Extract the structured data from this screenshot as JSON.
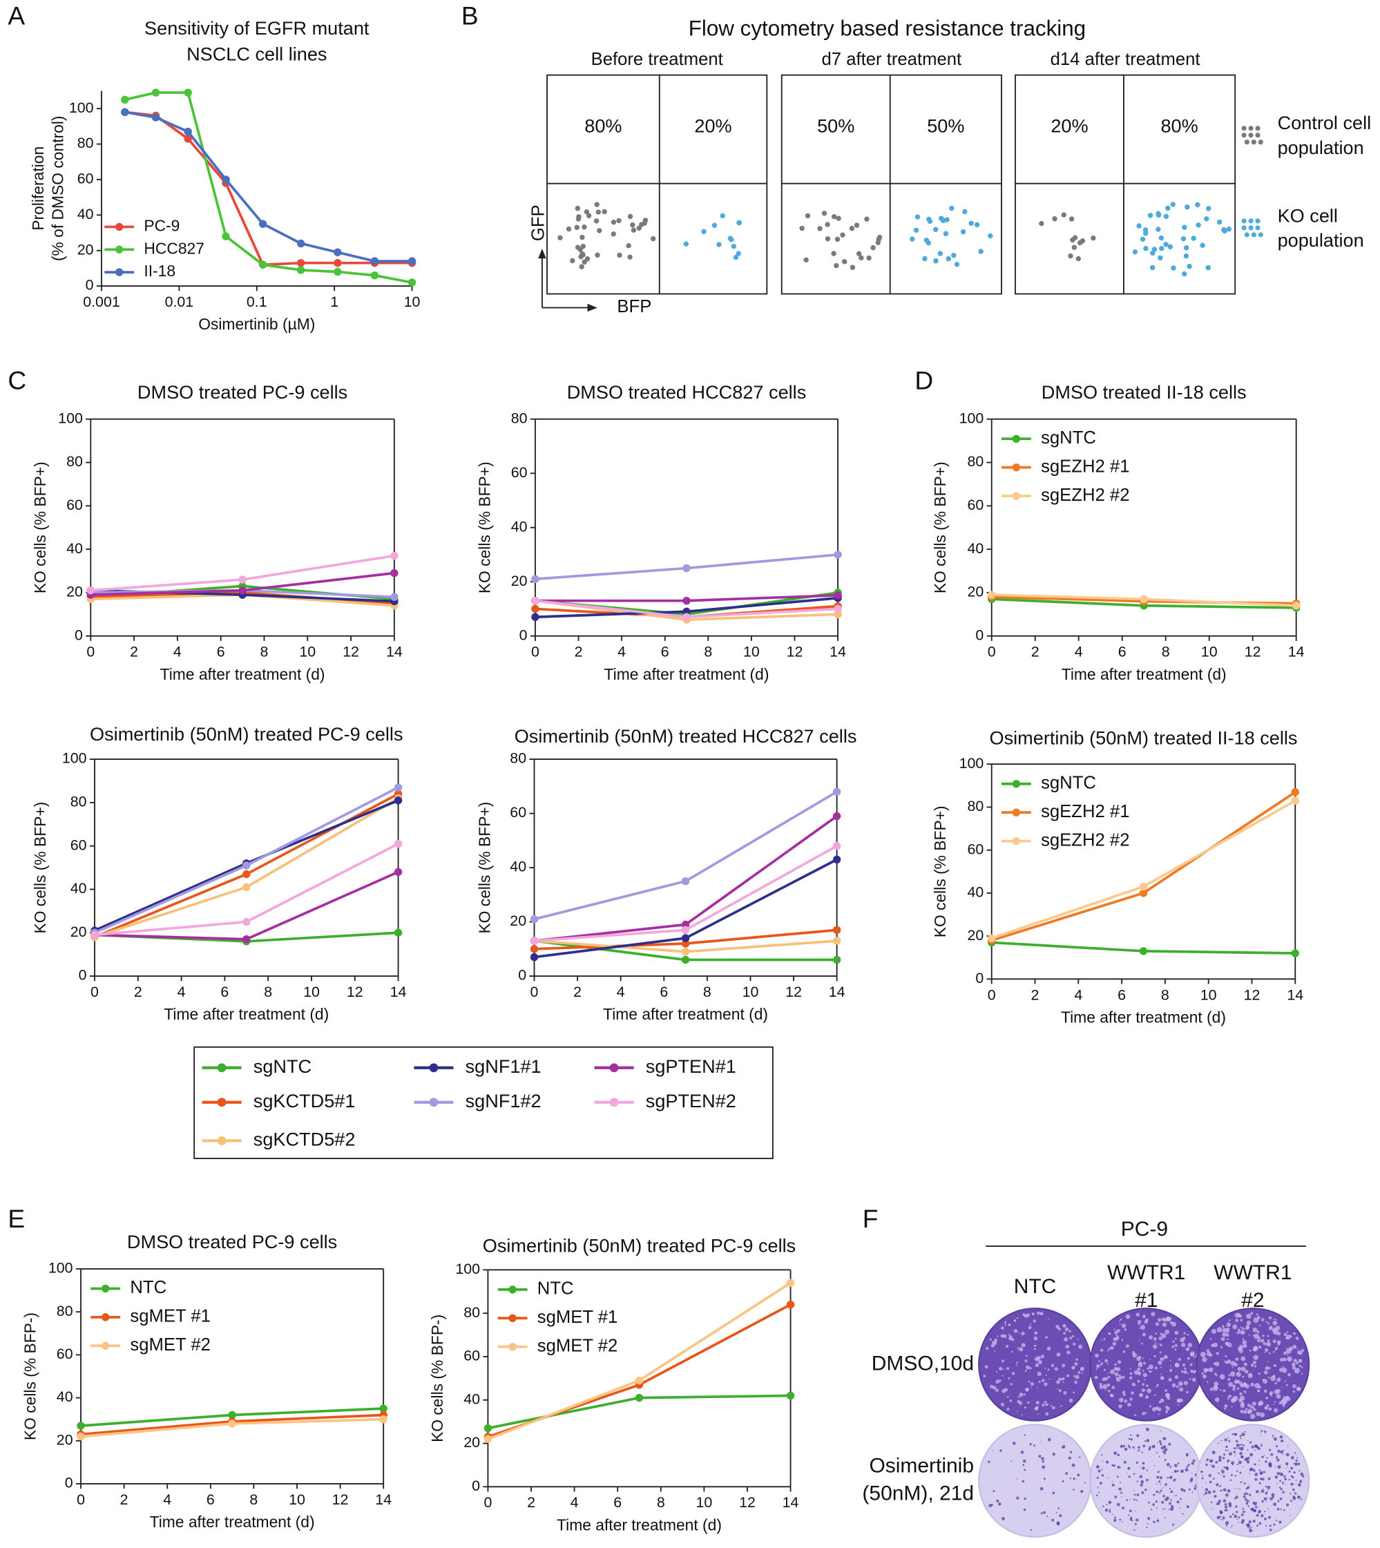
{
  "panel_labels": [
    "A",
    "B",
    "C",
    "D",
    "E",
    "F"
  ],
  "chart_data": [
    {
      "type": "line",
      "title": [
        "Sensitivity of EGFR mutant",
        "NSCLC cell lines"
      ],
      "x_label": "Osimertinib (µM)",
      "y_label": [
        "Proliferation",
        "(% of DMSO control)"
      ],
      "log_x": true,
      "frame": false,
      "legend": "lower left",
      "x": [
        0.002,
        0.005,
        0.013,
        0.04,
        0.12,
        0.37,
        1.1,
        3.3,
        10
      ],
      "xlim": [
        0.001,
        10
      ],
      "xticks": [
        0.001,
        0.01,
        0.1,
        1,
        10
      ],
      "ylim": [
        0,
        110
      ],
      "yticks": [
        0,
        20,
        40,
        60,
        80,
        100
      ],
      "series": [
        {
          "name": "PC-9",
          "color": "#e8483a",
          "values": [
            98,
            96,
            83,
            58,
            12,
            13,
            13,
            13,
            13
          ]
        },
        {
          "name": "HCC827",
          "color": "#4cc23a",
          "values": [
            105,
            109,
            109,
            28,
            12,
            9,
            8,
            6,
            2
          ]
        },
        {
          "name": "II-18",
          "color": "#4a6fbf",
          "values": [
            98,
            95,
            87,
            60,
            35,
            24,
            19,
            14,
            14
          ]
        }
      ]
    },
    {
      "type": "line",
      "title": [
        "DMSO treated PC-9 cells"
      ],
      "x_label": "Time after treatment (d)",
      "y_label": [
        "KO cells (% BFP+)"
      ],
      "frame": true,
      "legend": "shared",
      "x": [
        0,
        7,
        14
      ],
      "xlim": [
        0,
        14
      ],
      "xticks": [
        0,
        2,
        4,
        6,
        8,
        10,
        12,
        14
      ],
      "ylim": [
        0,
        100
      ],
      "yticks": [
        0,
        20,
        40,
        60,
        80,
        100
      ],
      "series": [
        {
          "name": "sgNTC",
          "color": "#3cb02c",
          "values": [
            18,
            23,
            17
          ]
        },
        {
          "name": "sgKCTD5#1",
          "color": "#e8561a",
          "values": [
            18,
            20,
            15
          ]
        },
        {
          "name": "sgKCTD5#2",
          "color": "#f9c07a",
          "values": [
            17,
            19,
            14
          ]
        },
        {
          "name": "sgNF1#1",
          "color": "#2e2e8c",
          "values": [
            21,
            19,
            16
          ]
        },
        {
          "name": "sgNF1#2",
          "color": "#a19ae0",
          "values": [
            20,
            21,
            18
          ]
        },
        {
          "name": "sgPTEN#1",
          "color": "#a52fa0",
          "values": [
            19,
            21,
            29
          ]
        },
        {
          "name": "sgPTEN#2",
          "color": "#f2a8dc",
          "values": [
            21,
            26,
            37
          ]
        }
      ]
    },
    {
      "type": "line",
      "title": [
        "DMSO treated HCC827 cells"
      ],
      "x_label": "Time after treatment (d)",
      "y_label": [
        "KO cells (% BFP+)"
      ],
      "frame": true,
      "x": [
        0,
        7,
        14
      ],
      "xlim": [
        0,
        14
      ],
      "xticks": [
        0,
        2,
        4,
        6,
        8,
        10,
        12,
        14
      ],
      "ylim": [
        0,
        80
      ],
      "yticks": [
        0,
        20,
        40,
        60,
        80
      ],
      "series": [
        {
          "name": "sgNTC",
          "color": "#3cb02c",
          "values": [
            13,
            8,
            16
          ]
        },
        {
          "name": "sgKCTD5#1",
          "color": "#e8561a",
          "values": [
            10,
            7,
            11
          ]
        },
        {
          "name": "sgKCTD5#2",
          "color": "#f9c07a",
          "values": [
            13,
            6,
            8
          ]
        },
        {
          "name": "sgNF1#1",
          "color": "#2e2e8c",
          "values": [
            7,
            9,
            14
          ]
        },
        {
          "name": "sgNF1#2",
          "color": "#a19ae0",
          "values": [
            21,
            25,
            30
          ]
        },
        {
          "name": "sgPTEN#1",
          "color": "#a52fa0",
          "values": [
            13,
            13,
            15
          ]
        },
        {
          "name": "sgPTEN#2",
          "color": "#f2a8dc",
          "values": [
            13,
            7,
            10
          ]
        }
      ]
    },
    {
      "type": "line",
      "title": [
        "Osimertinib (50nM) treated PC-9 cells"
      ],
      "x_label": "Time after treatment (d)",
      "y_label": [
        "KO cells (% BFP+)"
      ],
      "frame": true,
      "x": [
        0,
        7,
        14
      ],
      "xlim": [
        0,
        14
      ],
      "xticks": [
        0,
        2,
        4,
        6,
        8,
        10,
        12,
        14
      ],
      "ylim": [
        0,
        100
      ],
      "yticks": [
        0,
        20,
        40,
        60,
        80,
        100
      ],
      "series": [
        {
          "name": "sgNTC",
          "color": "#3cb02c",
          "values": [
            19,
            16,
            20
          ]
        },
        {
          "name": "sgKCTD5#1",
          "color": "#e8561a",
          "values": [
            18,
            47,
            84
          ]
        },
        {
          "name": "sgKCTD5#2",
          "color": "#f9c07a",
          "values": [
            18,
            41,
            82
          ]
        },
        {
          "name": "sgNF1#1",
          "color": "#2e2e8c",
          "values": [
            21,
            52,
            81
          ]
        },
        {
          "name": "sgNF1#2",
          "color": "#a19ae0",
          "values": [
            20,
            51,
            87
          ]
        },
        {
          "name": "sgPTEN#1",
          "color": "#a52fa0",
          "values": [
            19,
            17,
            48
          ]
        },
        {
          "name": "sgPTEN#2",
          "color": "#f2a8dc",
          "values": [
            19,
            25,
            61
          ]
        }
      ]
    },
    {
      "type": "line",
      "title": [
        "Osimertinib (50nM) treated HCC827 cells"
      ],
      "x_label": "Time after treatment (d)",
      "y_label": [
        "KO cells (% BFP+)"
      ],
      "frame": true,
      "x": [
        0,
        7,
        14
      ],
      "xlim": [
        0,
        14
      ],
      "xticks": [
        0,
        2,
        4,
        6,
        8,
        10,
        12,
        14
      ],
      "ylim": [
        0,
        80
      ],
      "yticks": [
        0,
        20,
        40,
        60,
        80
      ],
      "series": [
        {
          "name": "sgNTC",
          "color": "#3cb02c",
          "values": [
            13,
            6,
            6
          ]
        },
        {
          "name": "sgKCTD5#1",
          "color": "#e8561a",
          "values": [
            10,
            12,
            17
          ]
        },
        {
          "name": "sgKCTD5#2",
          "color": "#f9c07a",
          "values": [
            13,
            9,
            13
          ]
        },
        {
          "name": "sgNF1#1",
          "color": "#2e2e8c",
          "values": [
            7,
            14,
            43
          ]
        },
        {
          "name": "sgNF1#2",
          "color": "#a19ae0",
          "values": [
            21,
            35,
            68
          ]
        },
        {
          "name": "sgPTEN#1",
          "color": "#a52fa0",
          "values": [
            13,
            19,
            59
          ]
        },
        {
          "name": "sgPTEN#2",
          "color": "#f2a8dc",
          "values": [
            13,
            17,
            48
          ]
        }
      ]
    },
    {
      "type": "line",
      "title": [
        "DMSO treated II-18 cells"
      ],
      "x_label": "Time after treatment (d)",
      "y_label": [
        "KO cells (% BFP+)"
      ],
      "frame": true,
      "legend": "upper left",
      "x": [
        0,
        7,
        14
      ],
      "xlim": [
        0,
        14
      ],
      "xticks": [
        0,
        2,
        4,
        6,
        8,
        10,
        12,
        14
      ],
      "ylim": [
        0,
        100
      ],
      "yticks": [
        0,
        20,
        40,
        60,
        80,
        100
      ],
      "series": [
        {
          "name": "sgNTC",
          "color": "#3cb02c",
          "values": [
            17,
            14,
            13
          ]
        },
        {
          "name": "sgEZH2 #1",
          "color": "#ef7a24",
          "values": [
            18,
            16,
            15
          ]
        },
        {
          "name": "sgEZH2 #2",
          "color": "#fcc98f",
          "values": [
            19,
            17,
            14
          ]
        }
      ]
    },
    {
      "type": "line",
      "title": [
        "Osimertinib (50nM) treated II-18 cells"
      ],
      "x_label": "Time after treatment (d)",
      "y_label": [
        "KO cells (% BFP+)"
      ],
      "frame": true,
      "legend": "upper left",
      "x": [
        0,
        7,
        14
      ],
      "xlim": [
        0,
        14
      ],
      "xticks": [
        0,
        2,
        4,
        6,
        8,
        10,
        12,
        14
      ],
      "ylim": [
        0,
        100
      ],
      "yticks": [
        0,
        20,
        40,
        60,
        80,
        100
      ],
      "series": [
        {
          "name": "sgNTC",
          "color": "#3cb02c",
          "values": [
            17,
            13,
            12
          ]
        },
        {
          "name": "sgEZH2 #1",
          "color": "#ef7a24",
          "values": [
            18,
            40,
            87
          ]
        },
        {
          "name": "sgEZH2 #2",
          "color": "#fcc98f",
          "values": [
            19,
            43,
            83
          ]
        }
      ]
    },
    {
      "type": "line",
      "title": [
        "DMSO treated PC-9 cells"
      ],
      "x_label": "Time after treatment (d)",
      "y_label": [
        "KO cells (% BFP-)"
      ],
      "frame": true,
      "legend": "upper left",
      "x": [
        0,
        7,
        14
      ],
      "xlim": [
        0,
        14
      ],
      "xticks": [
        0,
        2,
        4,
        6,
        8,
        10,
        12,
        14
      ],
      "ylim": [
        0,
        100
      ],
      "yticks": [
        0,
        20,
        40,
        60,
        80,
        100
      ],
      "series": [
        {
          "name": "NTC",
          "color": "#3cb02c",
          "values": [
            27,
            32,
            35
          ]
        },
        {
          "name": "sgMET #1",
          "color": "#e8561a",
          "values": [
            23,
            29,
            32
          ]
        },
        {
          "name": "sgMET #2",
          "color": "#fbc482",
          "values": [
            22,
            28,
            30
          ]
        }
      ]
    },
    {
      "type": "line",
      "title": [
        "Osimertinib (50nM) treated PC-9 cells"
      ],
      "x_label": "Time after treatment (d)",
      "y_label": [
        "KO cells (% BFP-)"
      ],
      "frame": true,
      "legend": "upper left",
      "x": [
        0,
        7,
        14
      ],
      "xlim": [
        0,
        14
      ],
      "xticks": [
        0,
        2,
        4,
        6,
        8,
        10,
        12,
        14
      ],
      "ylim": [
        0,
        100
      ],
      "yticks": [
        0,
        20,
        40,
        60,
        80,
        100
      ],
      "series": [
        {
          "name": "NTC",
          "color": "#3cb02c",
          "values": [
            27,
            41,
            42
          ]
        },
        {
          "name": "sgMET #1",
          "color": "#e8561a",
          "values": [
            23,
            47,
            84
          ]
        },
        {
          "name": "sgMET #2",
          "color": "#fbc482",
          "values": [
            22,
            49,
            94
          ]
        }
      ]
    }
  ],
  "flow_diagram": {
    "title": "Flow cytometry based resistance tracking",
    "y_axis": "GFP",
    "x_axis": "BFP",
    "panels": [
      {
        "label": "Before treatment",
        "upper_left": "80%",
        "upper_right": "20%"
      },
      {
        "label": "d7 after treatment",
        "upper_left": "50%",
        "upper_right": "50%"
      },
      {
        "label": "d14 after treatment",
        "upper_left": "20%",
        "upper_right": "80%"
      }
    ],
    "legend": [
      [
        "Control cell",
        "population"
      ],
      [
        "KO cell",
        "population"
      ]
    ]
  },
  "colony_assay": {
    "title": "PC-9",
    "columns": [
      [
        "NTC"
      ],
      [
        "WWTR1",
        "#1"
      ],
      [
        "WWTR1",
        "#2"
      ]
    ],
    "rows": [
      [
        "DMSO,10d"
      ],
      [
        "Osimertinib",
        "(50nM), 21d"
      ]
    ]
  }
}
